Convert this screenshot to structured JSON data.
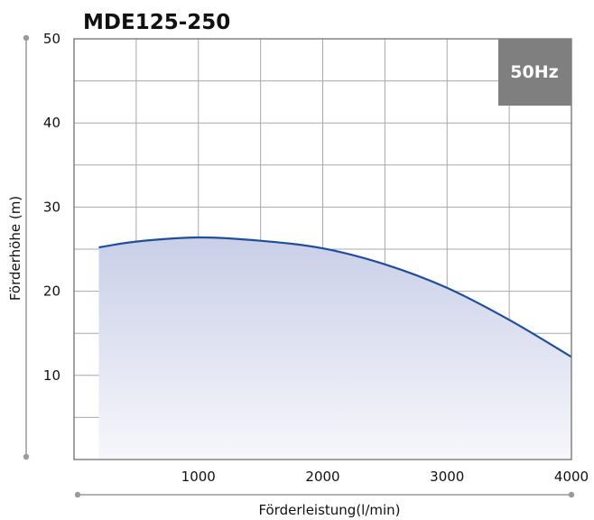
{
  "chart_data": {
    "type": "area",
    "title": "MDE125-250",
    "badge": "50Hz",
    "xlabel": "Förderleistung(l/min)",
    "ylabel": "Förderhöhe (m)",
    "xlim": [
      0,
      4000
    ],
    "ylim": [
      0,
      50
    ],
    "x_ticks": [
      "1000",
      "2000",
      "3000",
      "4000"
    ],
    "y_ticks": [
      "10",
      "20",
      "30",
      "40",
      "50"
    ],
    "grid": true,
    "series": [
      {
        "x": [
          200,
          500,
          1000,
          1500,
          2000,
          2500,
          3000,
          3500,
          4000
        ],
        "y": [
          25.2,
          25.9,
          26.4,
          26.0,
          25.1,
          23.2,
          20.4,
          16.6,
          12.2
        ]
      }
    ],
    "colors": {
      "curve": "#1f4e9c",
      "fill_top": "#c9cfe8",
      "fill_bottom": "#f7f7fb",
      "grid": "#a8a8a8",
      "badge": "#7f7f7f",
      "frame": "#7a7a7a"
    }
  }
}
